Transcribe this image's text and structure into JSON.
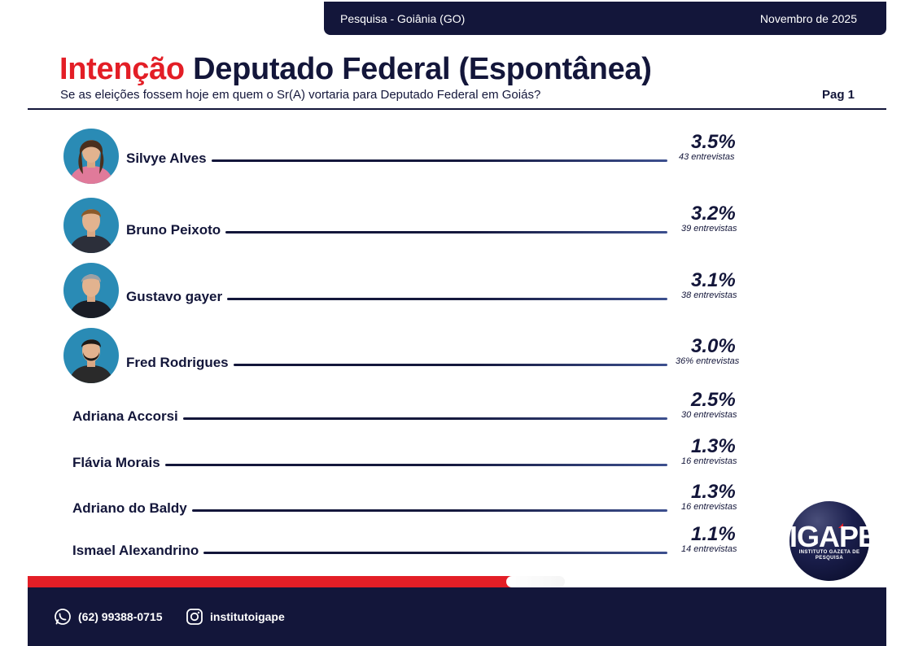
{
  "header": {
    "survey_label": "Pesquisa - Goiânia (GO)",
    "date_label": "Novembro de 2025"
  },
  "title": {
    "accent": "Intenção",
    "rest": "Deputado Federal (Espontânea)",
    "question": "Se as eleições fossem hoje em quem o Sr(A) vortaria para Deputado Federal em Goiás?",
    "page": "Pag 1"
  },
  "chart_data": {
    "type": "bar",
    "categories": [
      "Silvye Alves",
      "Bruno Peixoto",
      "Gustavo gayer",
      "Fred Rodrigues",
      "Adriana Accorsi",
      "Flávia Morais",
      "Adriano do Baldy",
      "Ismael Alexandrino"
    ],
    "values": [
      3.5,
      3.2,
      3.1,
      3.0,
      2.5,
      1.3,
      1.3,
      1.1
    ],
    "value_labels": [
      "3.5%",
      "3.2%",
      "3.1%",
      "3.0%",
      "2.5%",
      "1.3%",
      "1.3%",
      "1.1%"
    ],
    "counts": [
      "43 entrevistas",
      "39 entrevistas",
      "38 entrevistas",
      "36% entrevistas",
      "30 entrevistas",
      "16 entrevistas",
      "16 entrevistas",
      "14 entrevistas"
    ],
    "has_photo": [
      true,
      true,
      true,
      true,
      false,
      false,
      false,
      false
    ],
    "title": "Intenção Deputado Federal (Espontânea)"
  },
  "colors": {
    "navy": "#13163a",
    "accent_red": "#e31e26",
    "photo_bg": "#2a8bb5"
  },
  "brand": {
    "logo_text": "IGAPE",
    "logo_subtitle": "INSTITUTO GAZETA DE PESQUISA",
    "logo_icon": "igape-logo"
  },
  "footer": {
    "phone": "(62) 99388-0715",
    "phone_icon": "whatsapp-icon",
    "instagram": "institutoigape",
    "instagram_icon": "instagram-icon"
  }
}
